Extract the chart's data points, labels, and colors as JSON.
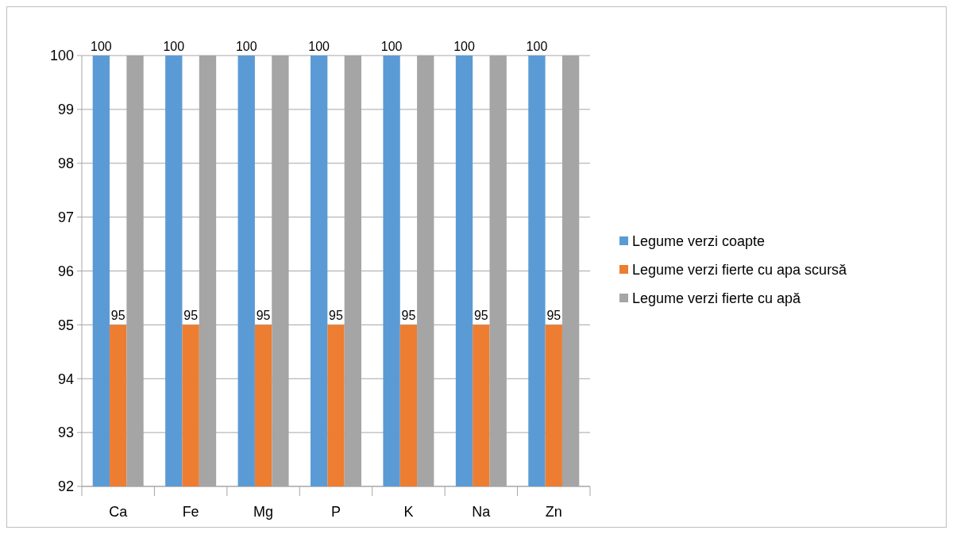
{
  "chart_data": {
    "type": "bar",
    "categories": [
      "Ca",
      "Fe",
      "Mg",
      "P",
      "K",
      "Na",
      "Zn"
    ],
    "series": [
      {
        "name": "Legume verzi coapte",
        "color": "#5b9bd5",
        "values": [
          100,
          100,
          100,
          100,
          100,
          100,
          100
        ],
        "value_labels": [
          "100",
          "100",
          "100",
          "100",
          "100",
          "100",
          "100"
        ]
      },
      {
        "name": "Legume verzi fierte cu apa scursă",
        "color": "#ed7d31",
        "values": [
          95,
          95,
          95,
          95,
          95,
          95,
          95
        ],
        "value_labels": [
          "95",
          "95",
          "95",
          "95",
          "95",
          "95",
          "95"
        ]
      },
      {
        "name": "Legume verzi fierte cu apă",
        "color": "#a5a5a5",
        "values": [
          100,
          100,
          100,
          100,
          100,
          100,
          100
        ]
      }
    ],
    "ylim": [
      92,
      100
    ],
    "yticks": [
      92,
      93,
      94,
      95,
      96,
      97,
      98,
      99,
      100
    ],
    "grid": "y",
    "legend": "right"
  }
}
